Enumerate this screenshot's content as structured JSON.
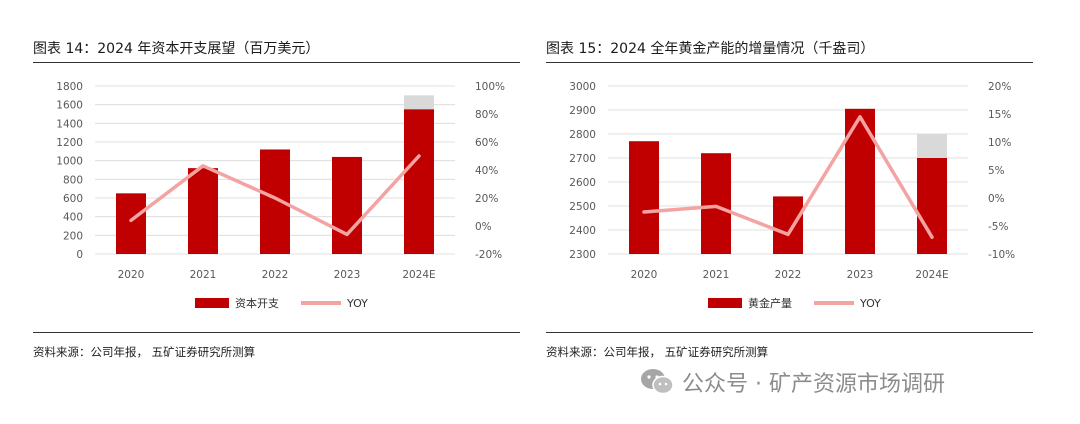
{
  "colors": {
    "bar": "#C00000",
    "estimate": "#D9D9D9",
    "line": "#F4A3A3",
    "text": "#595959"
  },
  "watermark": "公众号 · 矿产资源市场调研",
  "chart_data": [
    {
      "type": "bar",
      "title": "图表 14：2024 年资本开支展望（百万美元）",
      "source": "资料来源：公司年报，  五矿证券研究所测算",
      "categories": [
        "2020",
        "2021",
        "2022",
        "2023",
        "2024E"
      ],
      "series": [
        {
          "name": "资本开支",
          "kind": "bar",
          "axis": "left",
          "values": [
            650,
            920,
            1120,
            1040,
            1550
          ],
          "estimate_top": [
            null,
            null,
            null,
            null,
            1700
          ]
        },
        {
          "name": "YOY",
          "kind": "line",
          "axis": "right",
          "values": [
            4,
            43,
            20,
            -6,
            50
          ]
        }
      ],
      "y_left": {
        "ylim": [
          0,
          1800
        ],
        "ticks": [
          "0",
          "200",
          "400",
          "600",
          "800",
          "1000",
          "1200",
          "1400",
          "1600",
          "1800"
        ]
      },
      "y_right": {
        "ylim": [
          -20,
          100
        ],
        "ticks": [
          "-20%",
          "0%",
          "20%",
          "40%",
          "60%",
          "80%",
          "100%"
        ]
      },
      "legend_position": "bottom"
    },
    {
      "type": "bar",
      "title": "图表 15：2024 全年黄金产能的增量情况（千盎司）",
      "source": "资料来源：公司年报，  五矿证券研究所测算",
      "categories": [
        "2020",
        "2021",
        "2022",
        "2023",
        "2024E"
      ],
      "series": [
        {
          "name": "黄金产量",
          "kind": "bar",
          "axis": "left",
          "values": [
            2770,
            2720,
            2540,
            2905,
            2700
          ],
          "estimate_top": [
            null,
            null,
            null,
            null,
            2800
          ]
        },
        {
          "name": "YOY",
          "kind": "line",
          "axis": "right",
          "values": [
            -2.5,
            -1.5,
            -6.5,
            14.5,
            -7
          ]
        }
      ],
      "y_left": {
        "ylim": [
          2300,
          3000
        ],
        "ticks": [
          "2300",
          "2400",
          "2500",
          "2600",
          "2700",
          "2800",
          "2900",
          "3000"
        ]
      },
      "y_right": {
        "ylim": [
          -10,
          20
        ],
        "ticks": [
          "-10%",
          "-5%",
          "0%",
          "5%",
          "10%",
          "15%",
          "20%"
        ]
      },
      "legend_position": "bottom"
    }
  ]
}
